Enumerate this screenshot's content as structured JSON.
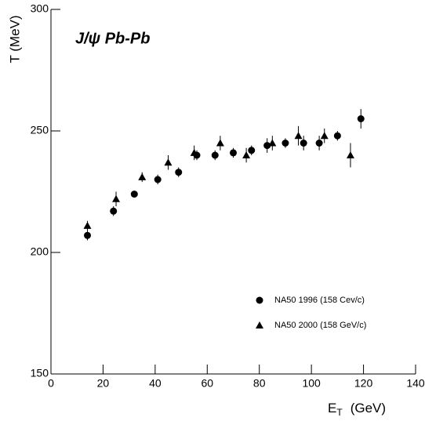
{
  "chart_data": {
    "type": "scatter",
    "title": "J/ψ Pb-Pb",
    "x_label": {
      "main": "E",
      "sub": "T",
      "unit": "(GeV)"
    },
    "y_label": "T  (MeV)",
    "xlim": [
      0,
      140
    ],
    "xticks": [
      0,
      20,
      40,
      60,
      80,
      100,
      120,
      140
    ],
    "ylim": [
      150,
      300
    ],
    "yticks": [
      150,
      200,
      250,
      300
    ],
    "legend": "lower-right",
    "series": [
      {
        "name": "NA50 1996 (158 Cev/c)",
        "marker": "circle",
        "color": "#000000",
        "x": [
          14,
          24,
          32,
          41,
          49,
          56,
          63,
          70,
          77,
          83,
          90,
          97,
          103,
          110,
          119
        ],
        "values": [
          207,
          217,
          224,
          230,
          233,
          240,
          240,
          241,
          242,
          244,
          245,
          245,
          245,
          248,
          255
        ],
        "errors": [
          2,
          2,
          1,
          2,
          2,
          2,
          2,
          2,
          2,
          3,
          2,
          3,
          3,
          2,
          4
        ]
      },
      {
        "name": "NA50 2000 (158 GeV/c)",
        "marker": "triangle",
        "color": "#000000",
        "x": [
          14,
          25,
          35,
          45,
          55,
          65,
          75,
          85,
          95,
          105,
          115
        ],
        "values": [
          211,
          222,
          231,
          237,
          241,
          245,
          240,
          245,
          248,
          248,
          240
        ],
        "errors": [
          2,
          3,
          2,
          3,
          3,
          3,
          3,
          3,
          4,
          3,
          5
        ]
      }
    ]
  }
}
